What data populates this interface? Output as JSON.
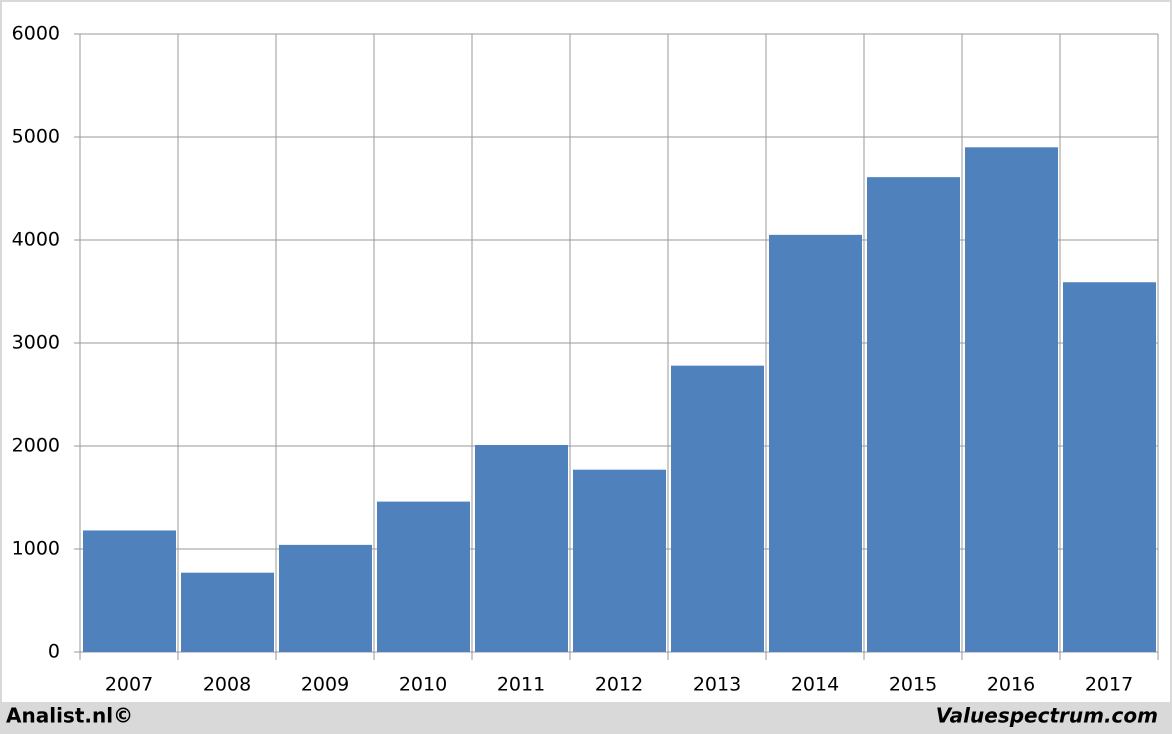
{
  "chart_data": {
    "type": "bar",
    "categories": [
      "2007",
      "2008",
      "2009",
      "2010",
      "2011",
      "2012",
      "2013",
      "2014",
      "2015",
      "2016",
      "2017"
    ],
    "values": [
      1180,
      770,
      1040,
      1460,
      2010,
      1770,
      2780,
      4050,
      4610,
      4900,
      3590
    ],
    "color": "#4f81bd",
    "ylim": [
      0,
      6000
    ],
    "yticks": [
      0,
      1000,
      2000,
      3000,
      4000,
      5000,
      6000
    ],
    "grid": true,
    "footer_left": "Analist.nl©",
    "footer_right": "Valuespectrum.com"
  }
}
